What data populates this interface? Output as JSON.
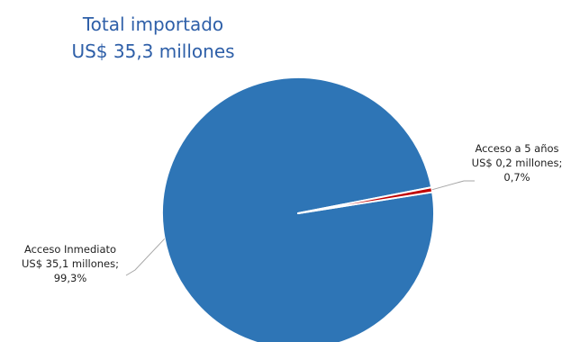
{
  "chart_data": {
    "type": "pie",
    "title_lines": [
      "Total importado",
      "US$ 35,3 millones"
    ],
    "slices": [
      {
        "name": "Acceso Inmediato",
        "value": 35.1,
        "percent": 99.3,
        "color": "#2E75B6",
        "label_lines": [
          "Acceso Inmediato",
          "US$ 35,1 millones;",
          "99,3%"
        ]
      },
      {
        "name": "Acceso a 5 años",
        "value": 0.2,
        "percent": 0.7,
        "color": "#C00000",
        "label_lines": [
          "Acceso a 5 años",
          "US$ 0,2 millones;",
          "0,7%"
        ]
      }
    ],
    "legend": "none"
  }
}
